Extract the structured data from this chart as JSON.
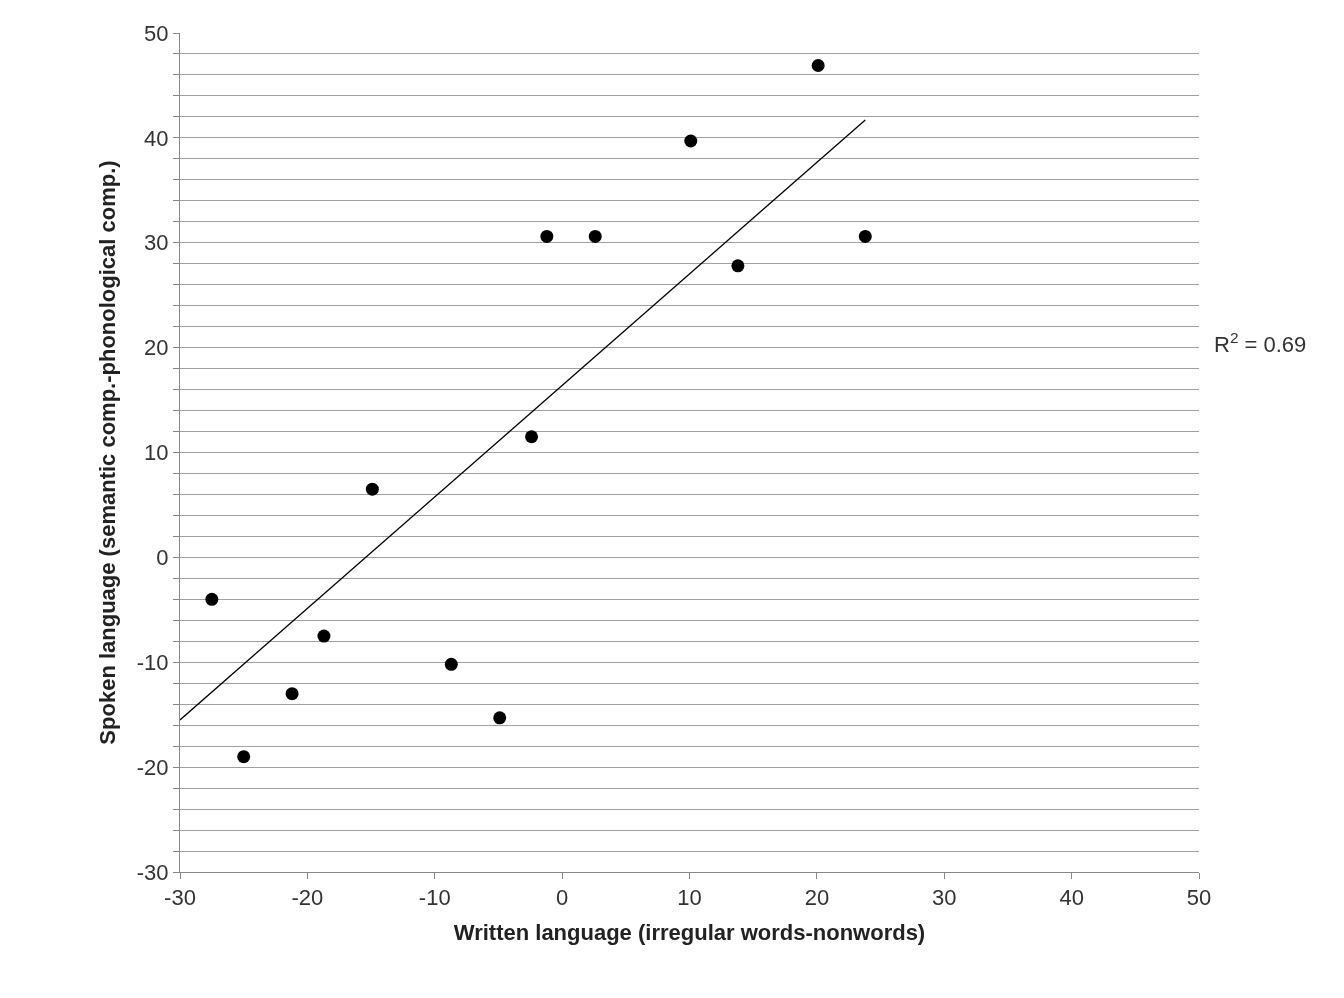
{
  "chart_data": {
    "type": "scatter",
    "xlabel": "Written language (irregular words-nonwords)",
    "ylabel": "Spoken language (semantic comp.-phonological comp.)",
    "xlim": [
      -30,
      50
    ],
    "xticks": [
      -30,
      -20,
      -10,
      0,
      10,
      20,
      30,
      40,
      50
    ],
    "ylim": [
      -30,
      50
    ],
    "yticks": [
      -30,
      {
        "value": -28,
        "label": null
      },
      {
        "value": -26,
        "label": null
      },
      {
        "value": -24,
        "label": null
      },
      {
        "value": -22,
        "label": null
      },
      -20,
      {
        "value": -18,
        "label": null
      },
      {
        "value": -16,
        "label": null
      },
      {
        "value": -14,
        "label": null
      },
      {
        "value": -12,
        "label": null
      },
      -10,
      {
        "value": -8,
        "label": null
      },
      {
        "value": -6,
        "label": null
      },
      {
        "value": -4,
        "label": null
      },
      {
        "value": -2,
        "label": null
      },
      0,
      {
        "value": 2,
        "label": null
      },
      {
        "value": 4,
        "label": null
      },
      {
        "value": 6,
        "label": null
      },
      {
        "value": 8,
        "label": null
      },
      10,
      {
        "value": 12,
        "label": null
      },
      {
        "value": 14,
        "label": null
      },
      {
        "value": 16,
        "label": null
      },
      {
        "value": 18,
        "label": null
      },
      20,
      {
        "value": 22,
        "label": null
      },
      {
        "value": 24,
        "label": null
      },
      {
        "value": 26,
        "label": null
      },
      {
        "value": 28,
        "label": null
      },
      30,
      {
        "value": 32,
        "label": null
      },
      {
        "value": 34,
        "label": null
      },
      {
        "value": 36,
        "label": null
      },
      {
        "value": 38,
        "label": null
      },
      40,
      {
        "value": 42,
        "label": null
      },
      {
        "value": 44,
        "label": null
      },
      {
        "value": 46,
        "label": null
      },
      {
        "value": 48,
        "label": null
      },
      50
    ],
    "grid": "y",
    "series": [
      {
        "marker": "circle",
        "color": "#000000",
        "x": [
          -27.5,
          -25,
          -21.2,
          -18.7,
          -14.9,
          -8.7,
          -4.9,
          -2.4,
          -1.2,
          2.6,
          10.1,
          13.8,
          20.1,
          23.8
        ],
        "values": [
          -4,
          -19,
          -13,
          -7.5,
          6.5,
          -10.2,
          -15.3,
          11.5,
          30.6,
          30.6,
          39.7,
          27.8,
          46.9,
          30.6
        ]
      },
      {
        "type": "line",
        "marker": "none",
        "line_style": "solid",
        "color": "#000000",
        "x": [
          -30,
          23.8
        ],
        "values": [
          -15.5,
          41.7
        ]
      }
    ],
    "annotations": [
      "R$^{2}$ = 0.69"
    ]
  }
}
